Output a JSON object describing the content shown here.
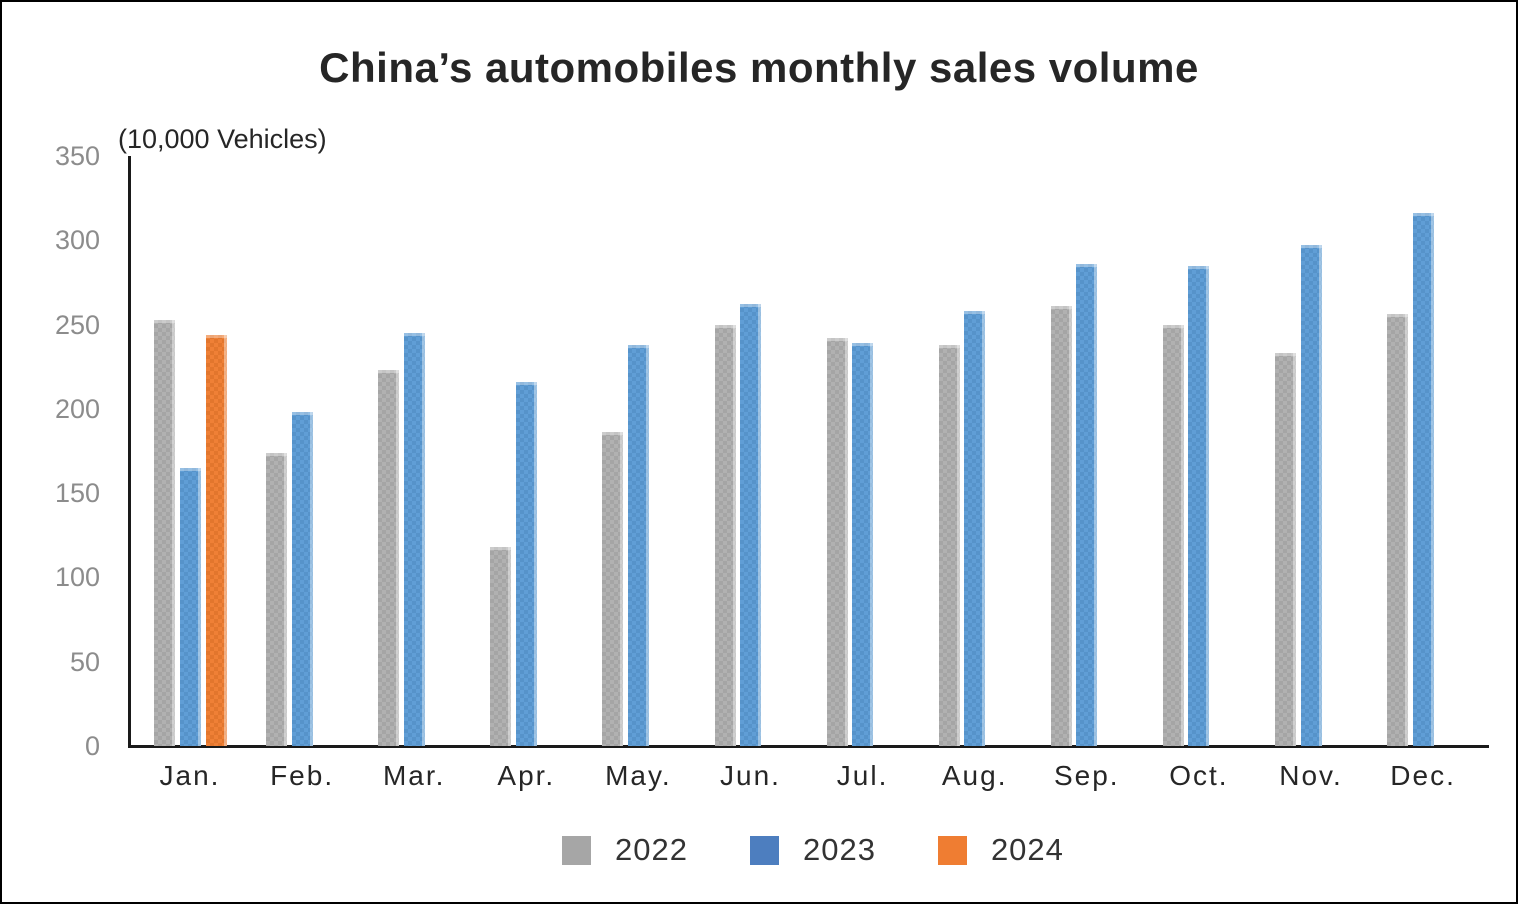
{
  "title": "China’s automobiles monthly sales volume",
  "unit_label": "(10,000 Vehicles)",
  "chart_data": {
    "type": "bar",
    "categories": [
      "Jan.",
      "Feb.",
      "Mar.",
      "Apr.",
      "May.",
      "Jun.",
      "Jul.",
      "Aug.",
      "Sep.",
      "Oct.",
      "Nov.",
      "Dec."
    ],
    "series": [
      {
        "name": "2022",
        "color": "#aeaeae",
        "values": [
          253,
          174,
          223,
          118,
          186,
          250,
          242,
          238,
          261,
          250,
          233,
          256
        ]
      },
      {
        "name": "2023",
        "color": "#5b9bd5",
        "values": [
          165,
          198,
          245,
          216,
          238,
          262,
          239,
          258,
          286,
          285,
          297,
          316
        ]
      },
      {
        "name": "2024",
        "color": "#ee7c2f",
        "values": [
          244,
          null,
          null,
          null,
          null,
          null,
          null,
          null,
          null,
          null,
          null,
          null
        ]
      }
    ],
    "title": "China’s automobiles monthly sales volume",
    "xlabel": "",
    "ylabel": "(10,000 Vehicles)",
    "ylim": [
      0,
      350
    ],
    "yticks": [
      0,
      50,
      100,
      150,
      200,
      250,
      300,
      350
    ],
    "grid": false,
    "legend_position": "bottom"
  },
  "legend": {
    "items": [
      {
        "label": "2022",
        "color": "#a6a6a6"
      },
      {
        "label": "2023",
        "color": "#4d7ebf"
      },
      {
        "label": "2024",
        "color": "#ef7d32"
      }
    ]
  },
  "colors": {
    "axis": "#1a1a1a",
    "tick_label": "#8c8c8c",
    "title_text": "#262626",
    "background": "#ffffff",
    "border": "#000000"
  }
}
